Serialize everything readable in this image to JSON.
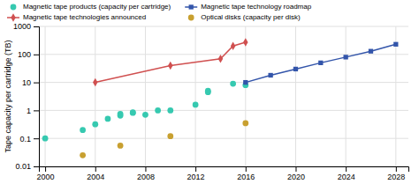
{
  "chart_data": {
    "type": "scatter",
    "ylabel": "Tape capacity per cartridge (TB)",
    "xlim": [
      1999.5,
      2029
    ],
    "ylim": [
      0.01,
      1000
    ],
    "xticks": [
      2000,
      2004,
      2008,
      2012,
      2016,
      2020,
      2024,
      2028
    ],
    "yticks": [
      0.01,
      0.1,
      1,
      10,
      100,
      1000
    ],
    "log": "y",
    "grid": true,
    "legend": "top",
    "series": [
      {
        "name": "Magnetic tape products (capacity per cartridge)",
        "type": "scatter",
        "color": "#36c9b0",
        "marker": "circle",
        "x": [
          2000,
          2003,
          2004,
          2005,
          2006,
          2006,
          2007,
          2007,
          2008,
          2009,
          2010,
          2012,
          2013,
          2013,
          2015,
          2016
        ],
        "values": [
          0.1,
          0.2,
          0.32,
          0.5,
          0.65,
          0.75,
          0.82,
          0.85,
          0.7,
          1.0,
          1.0,
          1.6,
          5.0,
          4.5,
          9.0,
          8.0
        ]
      },
      {
        "name": "Magnetic tape technology roadmap",
        "type": "line",
        "color": "#3355aa",
        "marker": "square",
        "x": [
          2016,
          2018,
          2020,
          2022,
          2024,
          2026,
          2028
        ],
        "values": [
          10,
          18,
          30,
          50,
          80,
          130,
          230
        ]
      },
      {
        "name": "Magnetic tape technologies announced",
        "type": "line",
        "color": "#d05050",
        "marker": "diamond",
        "x": [
          2004,
          2010,
          2014,
          2015,
          2016
        ],
        "values": [
          10,
          40,
          70,
          200,
          270
        ]
      },
      {
        "name": "Optical disks (capacity per disk)",
        "type": "scatter",
        "color": "#c8a030",
        "marker": "circle",
        "x": [
          2003,
          2006,
          2010,
          2016
        ],
        "values": [
          0.025,
          0.055,
          0.12,
          0.35
        ]
      }
    ]
  }
}
